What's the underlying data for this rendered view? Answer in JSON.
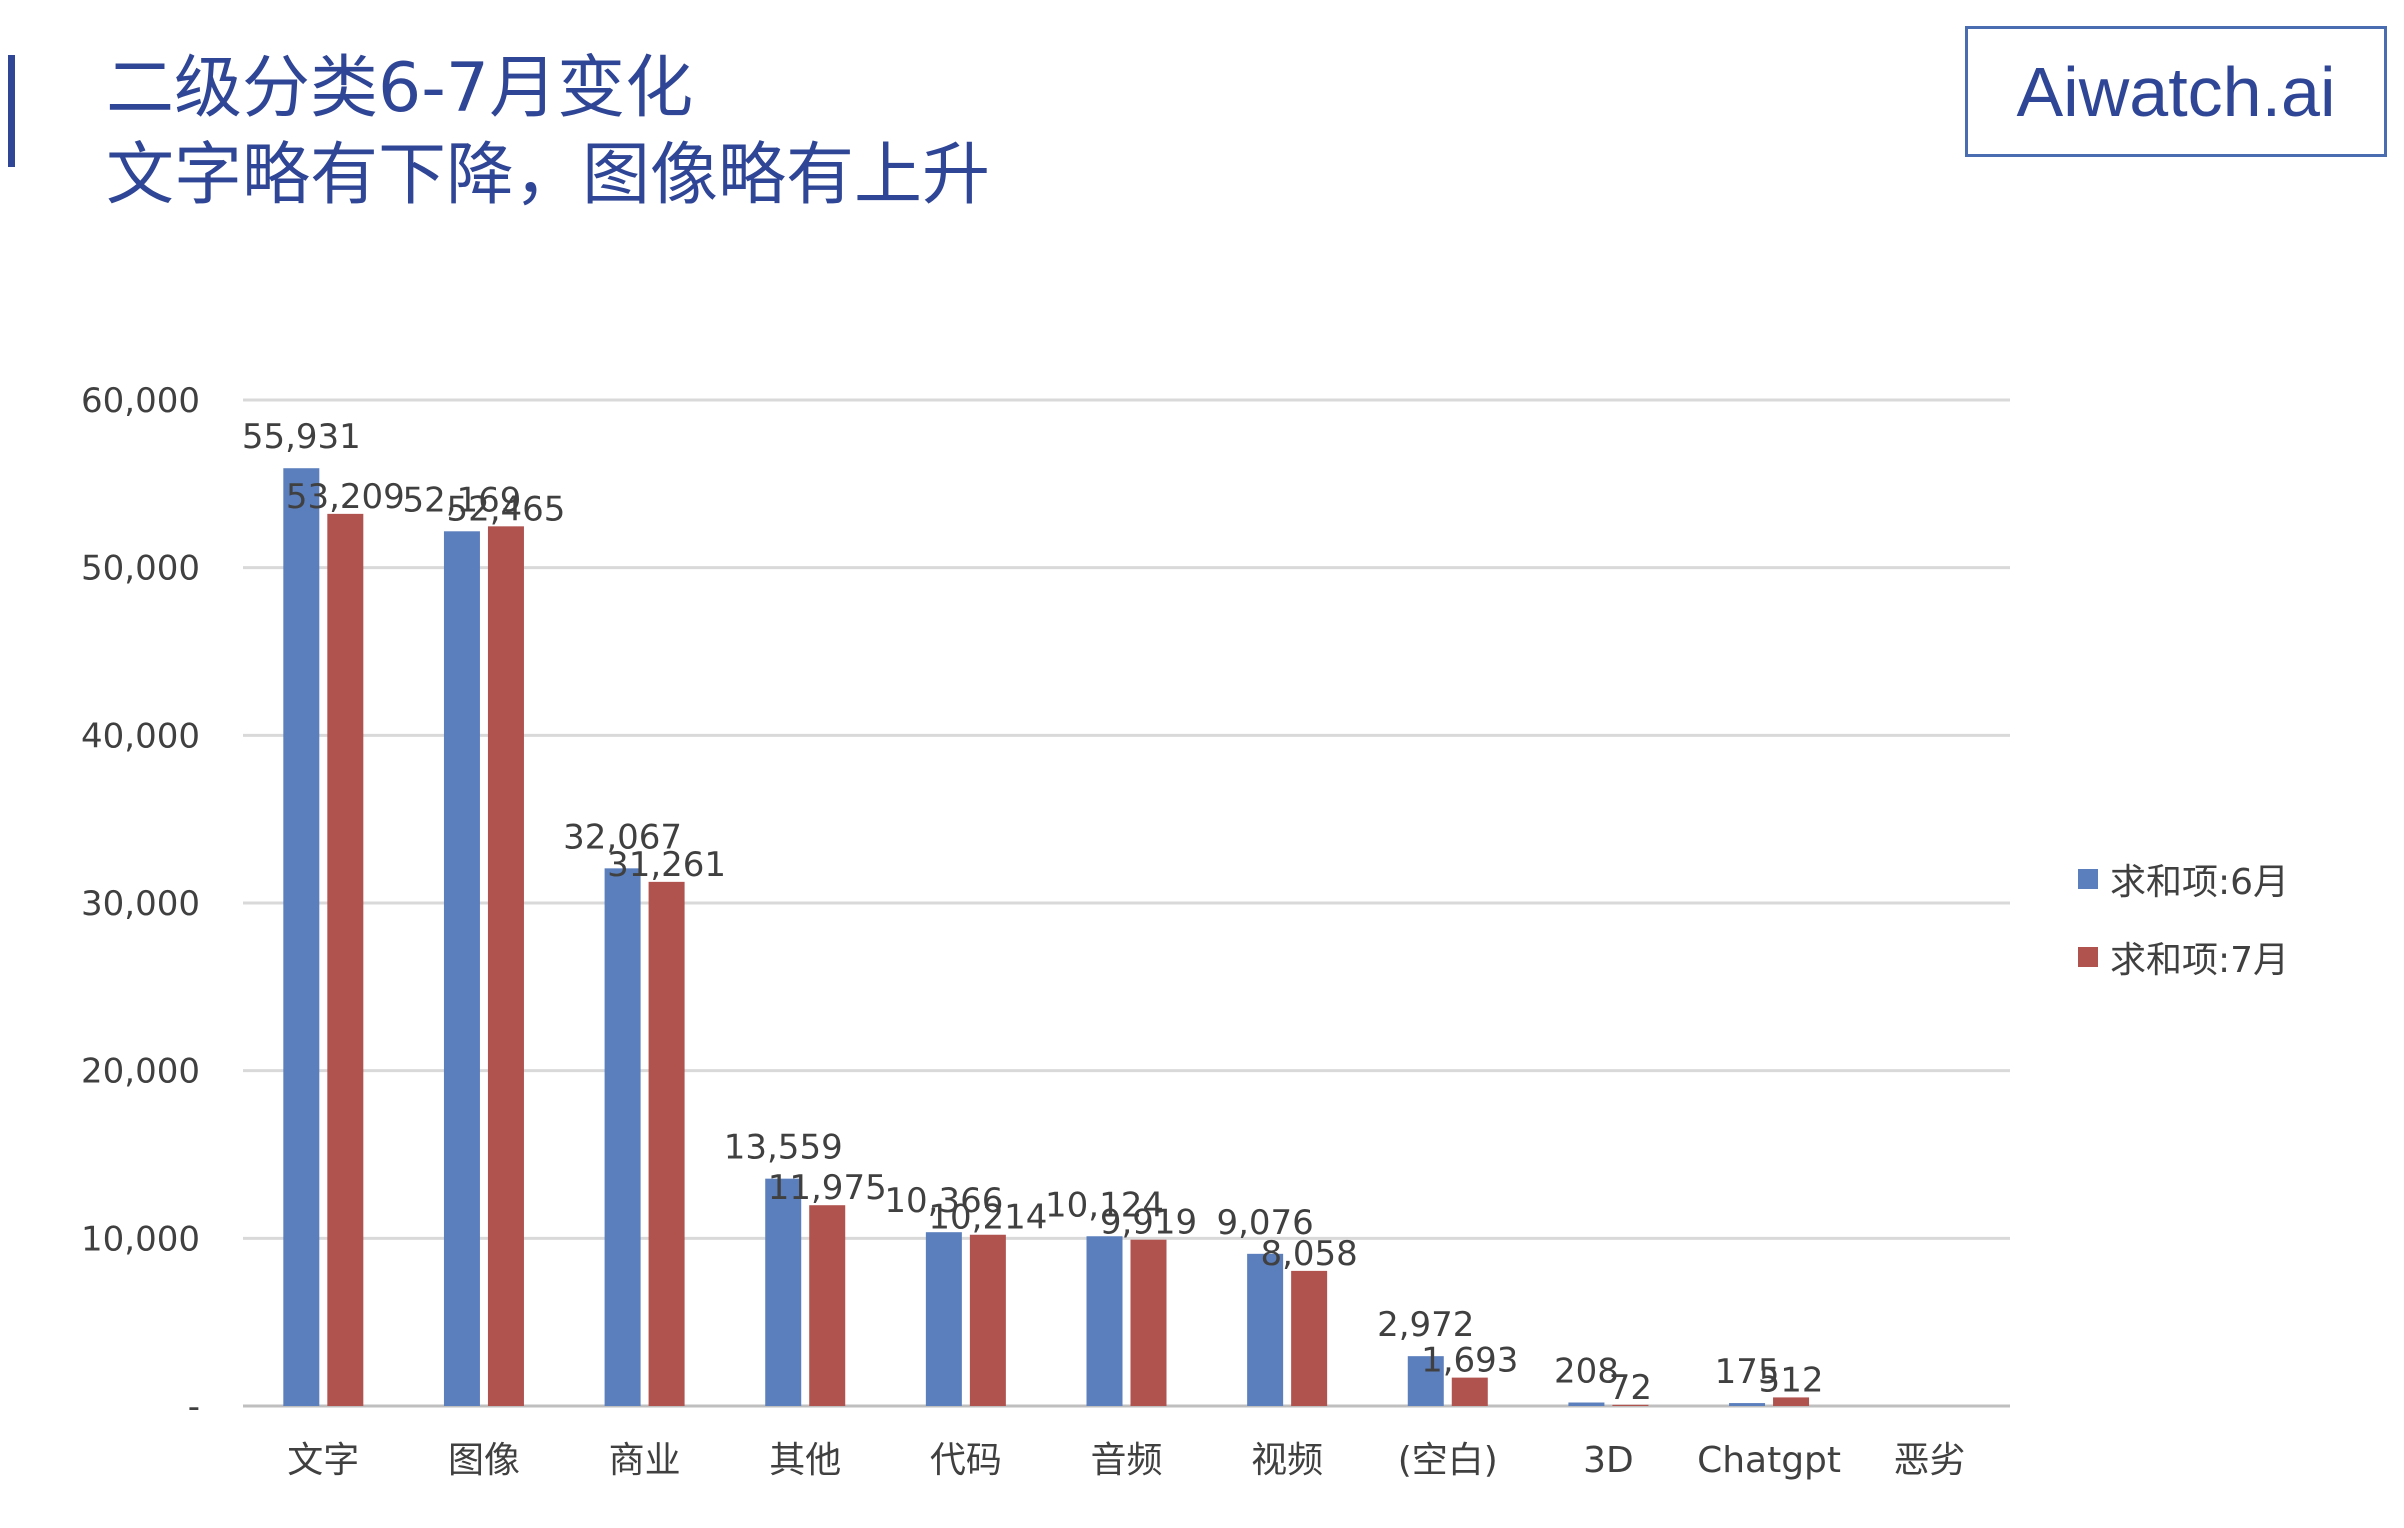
{
  "header": {
    "title_line1": "二级分类6-7月变化",
    "title_line2": "文字略有下降，图像略有上升",
    "logo_text": "Aiwatch.ai"
  },
  "colors": {
    "title": "#2f4596",
    "series_june": "#5b7fbd",
    "series_july": "#b0524e",
    "grid": "#d9d9d9",
    "text": "#404040"
  },
  "chart_data": {
    "type": "bar",
    "categories": [
      "文字",
      "图像",
      "商业",
      "其他",
      "代码",
      "音频",
      "视频",
      "(空白)",
      "3D",
      "Chatgpt",
      "恶劣"
    ],
    "series": [
      {
        "name": "求和项:6月",
        "values": [
          55931,
          52169,
          32067,
          13559,
          10366,
          10124,
          9076,
          2972,
          208,
          175,
          null
        ],
        "labels": [
          "55,931",
          "52,169",
          "32,067",
          "13,559",
          "10,366",
          "10,124",
          "9,076",
          "2,972",
          "208",
          "175",
          ""
        ]
      },
      {
        "name": "求和项:7月",
        "values": [
          53209,
          52465,
          31261,
          11975,
          10214,
          9919,
          8058,
          1693,
          72,
          512,
          null
        ],
        "labels": [
          "53,209",
          "52,465",
          "31,261",
          "11,975",
          "10,214",
          "9,919",
          "8,058",
          "1,693",
          "72",
          "512",
          ""
        ]
      }
    ],
    "y_ticks": [
      {
        "value": 0,
        "label": "-"
      },
      {
        "value": 10000,
        "label": "10,000"
      },
      {
        "value": 20000,
        "label": "20,000"
      },
      {
        "value": 30000,
        "label": "30,000"
      },
      {
        "value": 40000,
        "label": "40,000"
      },
      {
        "value": 50000,
        "label": "50,000"
      },
      {
        "value": 60000,
        "label": "60,000"
      }
    ],
    "ylim": [
      0,
      60000
    ],
    "grid": true,
    "legend_position": "right"
  }
}
